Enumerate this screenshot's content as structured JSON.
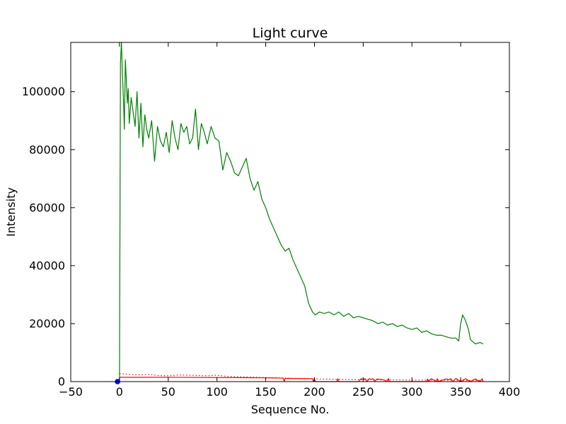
{
  "chart_data": {
    "type": "line",
    "title": "Light curve",
    "xlabel": "Sequence No.",
    "ylabel": "Intensity",
    "xlim": [
      -50,
      400
    ],
    "ylim": [
      0,
      117000
    ],
    "xticks": [
      -50,
      0,
      50,
      100,
      150,
      200,
      250,
      300,
      350,
      400
    ],
    "xtick_labels": [
      "−50",
      "0",
      "50",
      "100",
      "150",
      "200",
      "250",
      "300",
      "350",
      "400"
    ],
    "yticks": [
      0,
      20000,
      40000,
      60000,
      80000,
      100000
    ],
    "ytick_labels": [
      "0",
      "20000",
      "40000",
      "60000",
      "80000",
      "100000"
    ],
    "grid": false,
    "legend": "none",
    "series": [
      {
        "color": "#008000",
        "style": "solid",
        "x": [
          0,
          1,
          2,
          3,
          4,
          5,
          6,
          7,
          8,
          9,
          10,
          12,
          14,
          16,
          18,
          20,
          22,
          24,
          26,
          28,
          30,
          33,
          36,
          39,
          42,
          45,
          48,
          51,
          54,
          57,
          60,
          63,
          66,
          69,
          72,
          75,
          78,
          81,
          84,
          87,
          90,
          94,
          98,
          102,
          106,
          110,
          114,
          118,
          122,
          126,
          130,
          134,
          138,
          142,
          146,
          150,
          154,
          158,
          162,
          166,
          170,
          174,
          178,
          182,
          186,
          190,
          194,
          198,
          201,
          205,
          210,
          215,
          220,
          225,
          230,
          235,
          240,
          245,
          250,
          255,
          260,
          265,
          270,
          275,
          280,
          285,
          290,
          295,
          300,
          305,
          310,
          315,
          320,
          325,
          330,
          335,
          340,
          345,
          348,
          350,
          352,
          355,
          358,
          360,
          365,
          370,
          373
        ],
        "y": [
          0,
          110000,
          117000,
          106000,
          98000,
          87000,
          111000,
          104000,
          96000,
          101000,
          89000,
          98000,
          93000,
          88000,
          100000,
          84000,
          96000,
          81000,
          92000,
          87000,
          84000,
          90000,
          76000,
          88000,
          83000,
          81000,
          86000,
          79000,
          90000,
          84000,
          80000,
          89000,
          86000,
          88000,
          82000,
          84000,
          94000,
          80000,
          89000,
          86000,
          82000,
          88000,
          84000,
          83000,
          73000,
          79000,
          76000,
          72000,
          71000,
          74000,
          77000,
          70000,
          66000,
          69000,
          63000,
          60000,
          56000,
          53000,
          50000,
          47000,
          45000,
          46000,
          42000,
          39000,
          36000,
          33000,
          27000,
          24000,
          23000,
          24000,
          23500,
          24000,
          23000,
          24000,
          22500,
          23500,
          22000,
          22500,
          22000,
          21500,
          21000,
          20000,
          20500,
          19500,
          20000,
          19000,
          19500,
          18500,
          18000,
          18500,
          17000,
          17500,
          16500,
          16000,
          16000,
          15500,
          15000,
          15000,
          14000,
          20000,
          23000,
          21000,
          18000,
          14500,
          13000,
          13500,
          13000
        ]
      },
      {
        "color": "#ff0000",
        "style": "dotted",
        "x": [
          0,
          10,
          20,
          30,
          40,
          50,
          60,
          70,
          80,
          90,
          100,
          110,
          120,
          130,
          140,
          150,
          160,
          170,
          180,
          190,
          200,
          210,
          220,
          230,
          240,
          250,
          260,
          270,
          280,
          290,
          300,
          310,
          320,
          330,
          340,
          350,
          360,
          370,
          373
        ],
        "y": [
          2800,
          2500,
          2300,
          2500,
          2100,
          2000,
          2300,
          2200,
          2100,
          2000,
          2200,
          1800,
          1700,
          1600,
          1500,
          1400,
          1300,
          1200,
          1100,
          1100,
          900,
          900,
          800,
          800,
          700,
          700,
          700,
          600,
          600,
          600,
          500,
          500,
          500,
          500,
          500,
          400,
          400,
          400,
          400
        ]
      },
      {
        "color": "#ff0000",
        "style": "solid",
        "x": [
          0,
          50,
          100,
          150,
          168,
          169,
          170,
          195,
          198,
          199,
          200,
          201,
          223,
          224,
          225,
          245,
          248,
          250,
          252,
          254,
          256,
          258,
          260,
          262,
          264,
          270,
          275,
          276,
          277,
          300,
          315,
          316,
          317,
          320,
          325,
          326,
          327,
          335,
          338,
          340,
          342,
          345,
          350,
          355,
          360,
          365,
          370,
          372,
          373
        ],
        "y": [
          1500,
          1500,
          1400,
          1300,
          1200,
          0,
          1100,
          1000,
          1000,
          0,
          900,
          0,
          0,
          1000,
          0,
          0,
          1000,
          800,
          1000,
          0,
          1000,
          800,
          1000,
          0,
          900,
          700,
          0,
          1100,
          0,
          0,
          0,
          900,
          0,
          1000,
          0,
          1000,
          0,
          900,
          700,
          1000,
          0,
          1100,
          0,
          1000,
          0,
          900,
          0,
          1000,
          0
        ]
      },
      {
        "color": "#0000ff",
        "style": "marker",
        "x": [
          -2
        ],
        "y": [
          0
        ]
      }
    ]
  }
}
